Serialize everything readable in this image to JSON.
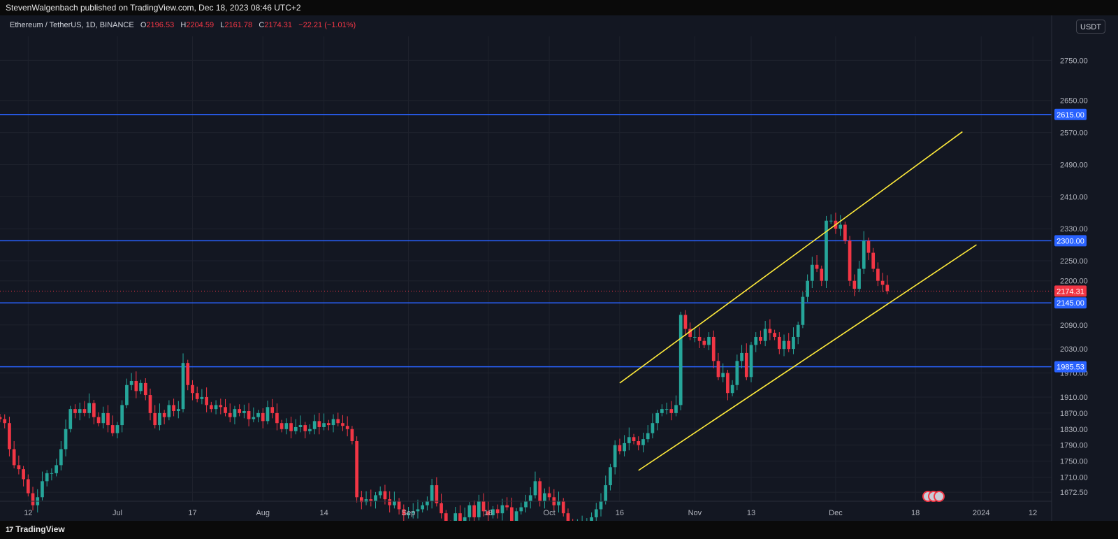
{
  "header": {
    "publish_text": "StevenWalgenbach published on TradingView.com, Dec 18, 2023 08:46 UTC+2"
  },
  "legend": {
    "symbol": "Ethereum / TetherUS, 1D, BINANCE",
    "o_label": "O",
    "o_value": "2196.53",
    "h_label": "H",
    "h_value": "2204.59",
    "l_label": "L",
    "l_value": "2161.78",
    "c_label": "C",
    "c_value": "2174.31",
    "change": "−22.21 (−1.01%)"
  },
  "currency": "USDT",
  "footer": {
    "brand": "TradingView",
    "logo_glyph": "17"
  },
  "colors": {
    "background": "#131722",
    "up": "#26a69a",
    "down": "#f23645",
    "level_line": "#2962ff",
    "channel": "#ffeb3b",
    "grid": "#1e222d"
  },
  "chart_data": {
    "type": "candlestick",
    "title": "Ethereum / TetherUS, 1D, BINANCE",
    "x_range": [
      "2023-06-06",
      "2024-01-16"
    ],
    "ylim": [
      1650,
      2810
    ],
    "y_ticks": [
      "2750.00",
      "2650.00",
      "2570.00",
      "2490.00",
      "2410.00",
      "2330.00",
      "2250.00",
      "2200.00",
      "2090.00",
      "2030.00",
      "1970.00",
      "1910.00",
      "1870.00",
      "1830.00",
      "1790.00",
      "1750.00",
      "1710.00",
      "1672.50"
    ],
    "x_ticks": [
      {
        "date": "2023-06-12",
        "label": "12"
      },
      {
        "date": "2023-07-01",
        "label": "Jul"
      },
      {
        "date": "2023-07-17",
        "label": "17"
      },
      {
        "date": "2023-08-01",
        "label": "Aug"
      },
      {
        "date": "2023-08-14",
        "label": "14"
      },
      {
        "date": "2023-09-01",
        "label": "Sep"
      },
      {
        "date": "2023-09-18",
        "label": "18"
      },
      {
        "date": "2023-10-01",
        "label": "Oct"
      },
      {
        "date": "2023-10-16",
        "label": "16"
      },
      {
        "date": "2023-11-01",
        "label": "Nov"
      },
      {
        "date": "2023-11-13",
        "label": "13"
      },
      {
        "date": "2023-12-01",
        "label": "Dec"
      },
      {
        "date": "2023-12-18",
        "label": "18"
      },
      {
        "date": "2024-01-01",
        "label": "2024"
      },
      {
        "date": "2024-01-12",
        "label": "12"
      }
    ],
    "horizontal_levels": [
      {
        "value": 2615.0,
        "label": "2615.00"
      },
      {
        "value": 2300.0,
        "label": "2300.00"
      },
      {
        "value": 2145.0,
        "label": "2145.00"
      },
      {
        "value": 1985.53,
        "label": "1985.53"
      }
    ],
    "last_price": {
      "value": 2174.31,
      "label": "2174.31"
    },
    "channel_lines": [
      {
        "from": {
          "date": "2023-10-16",
          "price": 1945
        },
        "to": {
          "date": "2023-12-28",
          "price": 2572
        }
      },
      {
        "from": {
          "date": "2023-10-20",
          "price": 1727
        },
        "to": {
          "date": "2023-12-31",
          "price": 2290
        }
      }
    ],
    "closes": [
      1855,
      1845,
      1780,
      1740,
      1730,
      1705,
      1670,
      1640,
      1660,
      1700,
      1720,
      1720,
      1740,
      1780,
      1830,
      1880,
      1870,
      1880,
      1870,
      1895,
      1860,
      1845,
      1870,
      1840,
      1820,
      1840,
      1890,
      1940,
      1950,
      1925,
      1945,
      1915,
      1870,
      1840,
      1870,
      1860,
      1890,
      1875,
      1880,
      1995,
      1940,
      1920,
      1905,
      1910,
      1890,
      1880,
      1890,
      1885,
      1870,
      1860,
      1880,
      1870,
      1875,
      1855,
      1860,
      1870,
      1850,
      1885,
      1870,
      1845,
      1830,
      1845,
      1825,
      1835,
      1840,
      1825,
      1830,
      1850,
      1835,
      1845,
      1840,
      1855,
      1845,
      1838,
      1830,
      1800,
      1660,
      1648,
      1655,
      1650,
      1665,
      1675,
      1655,
      1640,
      1650,
      1630,
      1615,
      1620,
      1625,
      1630,
      1640,
      1650,
      1690,
      1645,
      1620,
      1590,
      1580,
      1620,
      1600,
      1610,
      1640,
      1610,
      1650,
      1625,
      1615,
      1630,
      1620,
      1640,
      1635,
      1600,
      1625,
      1635,
      1650,
      1665,
      1700,
      1650,
      1670,
      1660,
      1640,
      1650,
      1620,
      1590,
      1570,
      1585,
      1590,
      1600,
      1610,
      1630,
      1650,
      1690,
      1735,
      1790,
      1775,
      1795,
      1810,
      1800,
      1790,
      1805,
      1820,
      1845,
      1870,
      1880,
      1880,
      1870,
      1890,
      2115,
      2080,
      2060,
      2060,
      2050,
      2040,
      2060,
      2000,
      1960,
      1970,
      1920,
      1940,
      2000,
      2020,
      1960,
      2040,
      2060,
      2050,
      2080,
      2070,
      2060,
      2030,
      2050,
      2030,
      2060,
      2090,
      2160,
      2200,
      2240,
      2230,
      2200,
      2350,
      2350,
      2330,
      2340,
      2300,
      2200,
      2180,
      2230,
      2300,
      2270,
      2230,
      2200,
      2190,
      2174.31
    ],
    "channel_note": ""
  }
}
